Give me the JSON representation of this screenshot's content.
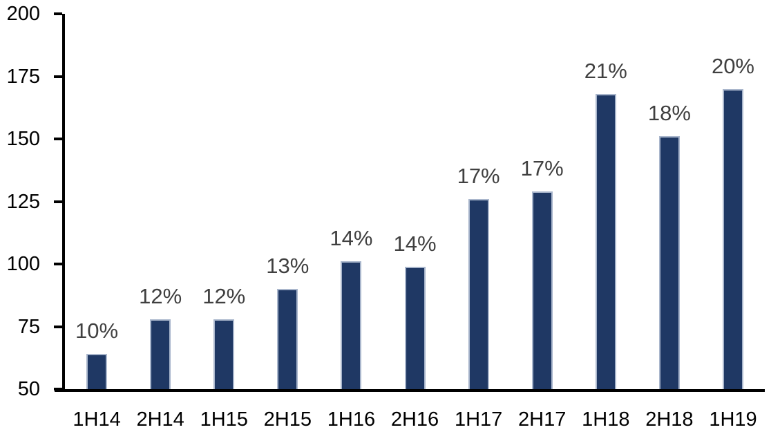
{
  "chart_data": {
    "type": "bar",
    "title": "",
    "xlabel": "",
    "ylabel": "",
    "categories": [
      "1H14",
      "2H14",
      "1H15",
      "2H15",
      "1H16",
      "2H16",
      "1H17",
      "2H17",
      "1H18",
      "2H18",
      "1H19"
    ],
    "values": [
      64,
      78,
      78,
      90,
      101,
      99,
      126,
      129,
      168,
      151,
      170
    ],
    "data_labels": [
      "10%",
      "12%",
      "12%",
      "13%",
      "14%",
      "14%",
      "17%",
      "17%",
      "21%",
      "18%",
      "20%"
    ],
    "ylim": [
      50,
      200
    ],
    "yticks": [
      50,
      75,
      100,
      125,
      150,
      175,
      200
    ],
    "grid": false,
    "legend": false,
    "colors": {
      "bar_fill": "#1f3864",
      "bar_border": "#a9b6cc",
      "data_label": "#404040",
      "axis": "#000000",
      "axis_text": "#000000",
      "background": "#ffffff"
    }
  }
}
